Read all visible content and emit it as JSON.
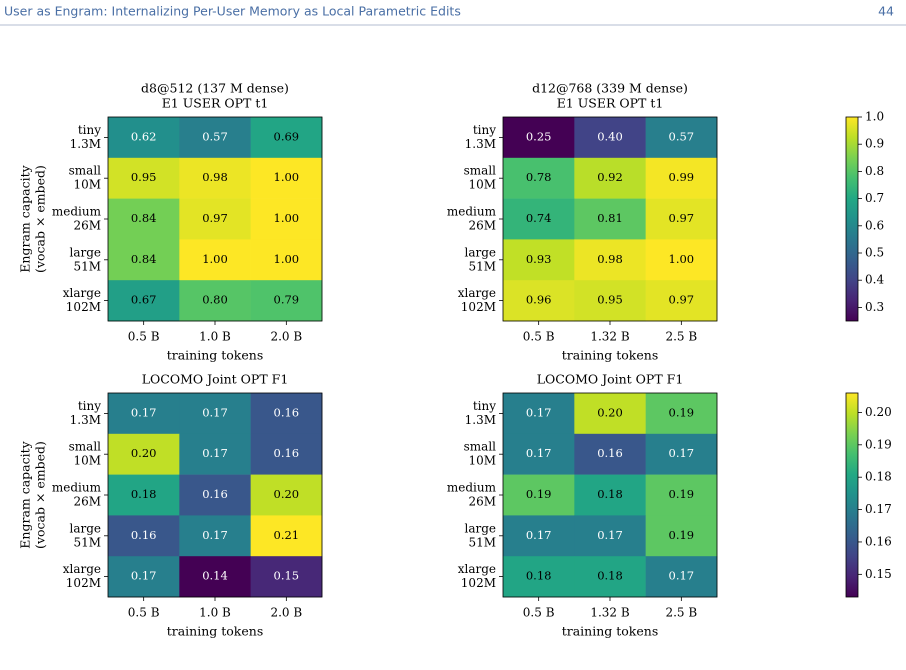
{
  "header": {
    "title": "User as Engram: Internalizing Per-User Memory as Local Parametric Edits",
    "page": "44"
  },
  "chart_data": [
    {
      "type": "heatmap",
      "title": [
        "d8@512 (137 M dense)",
        "E1 USER OPT t1"
      ],
      "categories": [
        "0.5 B",
        "1.0 B",
        "2.0 B"
      ],
      "rows": [
        [
          "tiny",
          "1.3M"
        ],
        [
          "small",
          "10M"
        ],
        [
          "medium",
          "26M"
        ],
        [
          "large",
          "51M"
        ],
        [
          "xlarge",
          "102M"
        ]
      ],
      "xlabel": "training tokens",
      "ylabel": [
        "Engram capacity",
        "(vocab × embed)"
      ],
      "values": [
        [
          0.62,
          0.57,
          0.69
        ],
        [
          0.95,
          0.98,
          1.0
        ],
        [
          0.84,
          0.97,
          1.0
        ],
        [
          0.84,
          1.0,
          1.0
        ],
        [
          0.67,
          0.8,
          0.79
        ]
      ],
      "value_labels": [
        [
          "0.62",
          "0.57",
          "0.69"
        ],
        [
          "0.95",
          "0.98",
          "1.00"
        ],
        [
          "0.84",
          "0.97",
          "1.00"
        ],
        [
          "0.84",
          "1.00",
          "1.00"
        ],
        [
          "0.67",
          "0.80",
          "0.79"
        ]
      ],
      "zlim": [
        0.25,
        1.0
      ],
      "colormap": "viridis",
      "colorbar": false
    },
    {
      "type": "heatmap",
      "title": [
        "d12@768 (339 M dense)",
        "E1 USER OPT t1"
      ],
      "categories": [
        "0.5 B",
        "1.32 B",
        "2.5 B"
      ],
      "rows": [
        [
          "tiny",
          "1.3M"
        ],
        [
          "small",
          "10M"
        ],
        [
          "medium",
          "26M"
        ],
        [
          "large",
          "51M"
        ],
        [
          "xlarge",
          "102M"
        ]
      ],
      "xlabel": "training tokens",
      "values": [
        [
          0.25,
          0.4,
          0.57
        ],
        [
          0.78,
          0.92,
          0.99
        ],
        [
          0.74,
          0.81,
          0.97
        ],
        [
          0.93,
          0.98,
          1.0
        ],
        [
          0.96,
          0.95,
          0.97
        ]
      ],
      "value_labels": [
        [
          "0.25",
          "0.40",
          "0.57"
        ],
        [
          "0.78",
          "0.92",
          "0.99"
        ],
        [
          "0.74",
          "0.81",
          "0.97"
        ],
        [
          "0.93",
          "0.98",
          "1.00"
        ],
        [
          "0.96",
          "0.95",
          "0.97"
        ]
      ],
      "zlim": [
        0.25,
        1.0
      ],
      "colormap": "viridis",
      "colorbar": true,
      "zticks": [
        0.3,
        0.4,
        0.5,
        0.6,
        0.7,
        0.8,
        0.9,
        {
          "value": 1.0,
          "label": "1.0"
        }
      ]
    },
    {
      "type": "heatmap",
      "title": [
        "LOCOMO Joint OPT F1"
      ],
      "categories": [
        "0.5 B",
        "1.0 B",
        "2.0 B"
      ],
      "rows": [
        [
          "tiny",
          "1.3M"
        ],
        [
          "small",
          "10M"
        ],
        [
          "medium",
          "26M"
        ],
        [
          "large",
          "51M"
        ],
        [
          "xlarge",
          "102M"
        ]
      ],
      "xlabel": "training tokens",
      "ylabel": [
        "Engram capacity",
        "(vocab × embed)"
      ],
      "values": [
        [
          0.17,
          0.17,
          0.16
        ],
        [
          0.2,
          0.17,
          0.16
        ],
        [
          0.18,
          0.16,
          0.2
        ],
        [
          0.16,
          0.17,
          0.21
        ],
        [
          0.17,
          0.14,
          0.15
        ]
      ],
      "value_labels": [
        [
          "0.17",
          "0.17",
          "0.16"
        ],
        [
          "0.20",
          "0.17",
          "0.16"
        ],
        [
          "0.18",
          "0.16",
          "0.20"
        ],
        [
          "0.16",
          "0.17",
          "0.21"
        ],
        [
          "0.17",
          "0.14",
          "0.15"
        ]
      ],
      "zlim": [
        0.143,
        0.206
      ],
      "colormap": "viridis",
      "colorbar": false
    },
    {
      "type": "heatmap",
      "title": [
        "LOCOMO Joint OPT F1"
      ],
      "categories": [
        "0.5 B",
        "1.32 B",
        "2.5 B"
      ],
      "rows": [
        [
          "tiny",
          "1.3M"
        ],
        [
          "small",
          "10M"
        ],
        [
          "medium",
          "26M"
        ],
        [
          "large",
          "51M"
        ],
        [
          "xlarge",
          "102M"
        ]
      ],
      "xlabel": "training tokens",
      "values": [
        [
          0.17,
          0.2,
          0.19
        ],
        [
          0.17,
          0.16,
          0.17
        ],
        [
          0.19,
          0.18,
          0.19
        ],
        [
          0.17,
          0.17,
          0.19
        ],
        [
          0.18,
          0.18,
          0.17
        ]
      ],
      "value_labels": [
        [
          "0.17",
          "0.20",
          "0.19"
        ],
        [
          "0.17",
          "0.16",
          "0.17"
        ],
        [
          "0.19",
          "0.18",
          "0.19"
        ],
        [
          "0.17",
          "0.17",
          "0.19"
        ],
        [
          "0.18",
          "0.18",
          "0.17"
        ]
      ],
      "zlim": [
        0.143,
        0.206
      ],
      "colormap": "viridis",
      "colorbar": true,
      "zticks": [
        0.15,
        0.16,
        0.17,
        0.18,
        0.19,
        {
          "value": 0.2,
          "label": "0.20"
        }
      ]
    }
  ]
}
